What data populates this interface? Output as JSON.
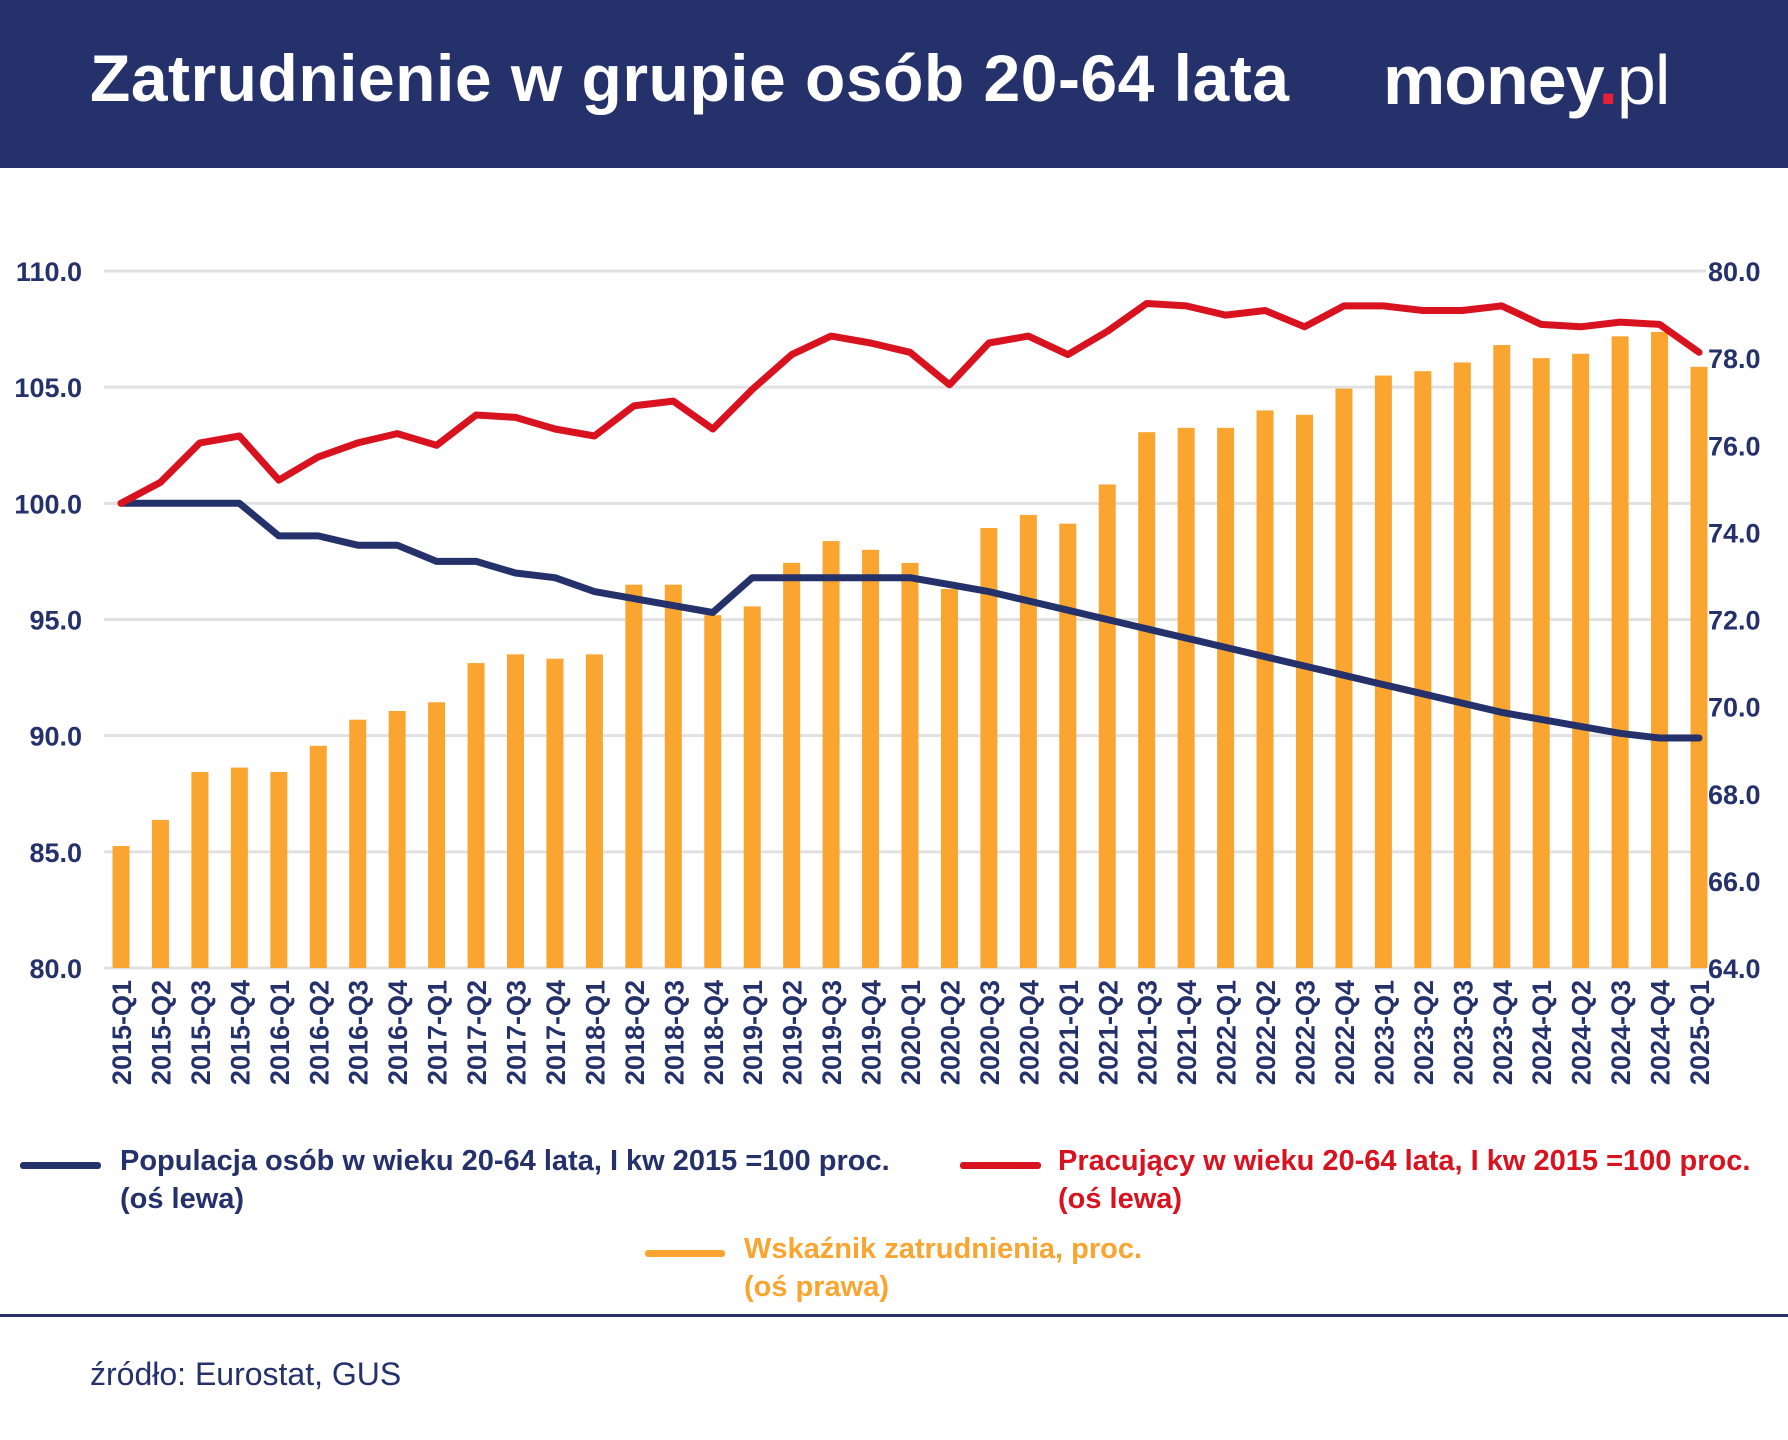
{
  "header": {
    "title": "Zatrudnienie w grupie osób 20-64 lata",
    "logo_main": "money",
    "logo_dot": ".",
    "logo_tld": "pl"
  },
  "colors": {
    "header_bg": "#25316b",
    "population_line": "#25316b",
    "employed_line": "#d9121f",
    "bars": "#f9a530",
    "grid": "#e1e1e1"
  },
  "chart_data": {
    "type": "bar+line",
    "categories": [
      "2015-Q1",
      "2015-Q2",
      "2015-Q3",
      "2015-Q4",
      "2016-Q1",
      "2016-Q2",
      "2016-Q3",
      "2016-Q4",
      "2017-Q1",
      "2017-Q2",
      "2017-Q3",
      "2017-Q4",
      "2018-Q1",
      "2018-Q2",
      "2018-Q3",
      "2018-Q4",
      "2019-Q1",
      "2019-Q2",
      "2019-Q3",
      "2019-Q4",
      "2020-Q1",
      "2020-Q2",
      "2020-Q3",
      "2020-Q4",
      "2021-Q1",
      "2021-Q2",
      "2021-Q3",
      "2021-Q4",
      "2022-Q1",
      "2022-Q2",
      "2022-Q3",
      "2022-Q4",
      "2023-Q1",
      "2023-Q2",
      "2023-Q3",
      "2023-Q4",
      "2024-Q1",
      "2024-Q2",
      "2024-Q3",
      "2024-Q4",
      "2025-Q1"
    ],
    "left_axis": {
      "min": 80,
      "max": 110,
      "ticks": [
        "80.0",
        "85.0",
        "90.0",
        "95.0",
        "100.0",
        "105.0",
        "110.0"
      ]
    },
    "right_axis": {
      "min": 64,
      "max": 80,
      "ticks": [
        "64.0",
        "66.0",
        "68.0",
        "70.0",
        "72.0",
        "74.0",
        "76.0",
        "78.0",
        "80.0"
      ]
    },
    "series": [
      {
        "name": "Populacja osób w wieku 20-64 lata, I kw 2015 =100 proc.",
        "axis_note": "(oś lewa)",
        "type": "line",
        "axis": "left",
        "values": [
          100.0,
          100.0,
          100.0,
          100.0,
          98.6,
          98.6,
          98.2,
          98.2,
          97.5,
          97.5,
          97.0,
          96.8,
          96.2,
          95.9,
          95.6,
          95.3,
          96.8,
          96.8,
          96.8,
          96.8,
          96.8,
          96.5,
          96.2,
          95.8,
          95.4,
          95.0,
          94.6,
          94.2,
          93.8,
          93.4,
          93.0,
          92.6,
          92.2,
          91.8,
          91.4,
          91.0,
          90.7,
          90.4,
          90.1,
          89.9,
          89.9
        ]
      },
      {
        "name": "Pracujący w wieku 20-64 lata, I kw 2015 =100 proc.",
        "axis_note": "(oś lewa)",
        "type": "line",
        "axis": "left",
        "values": [
          100.0,
          100.9,
          102.6,
          102.9,
          101.0,
          102.0,
          102.6,
          103.0,
          102.5,
          103.8,
          103.7,
          103.2,
          102.9,
          104.2,
          104.4,
          103.2,
          104.9,
          106.4,
          107.2,
          106.9,
          106.5,
          105.1,
          106.9,
          107.2,
          106.4,
          107.4,
          108.6,
          108.5,
          108.1,
          108.3,
          107.6,
          108.5,
          108.5,
          108.3,
          108.3,
          108.5,
          107.7,
          107.6,
          107.8,
          107.7,
          106.5
        ]
      },
      {
        "name": "Wskaźnik zatrudnienia, proc.",
        "axis_note": "(oś prawa)",
        "type": "bar",
        "axis": "right",
        "values": [
          66.8,
          67.4,
          68.5,
          68.6,
          68.5,
          69.1,
          69.7,
          69.9,
          70.1,
          71.0,
          71.2,
          71.1,
          71.2,
          72.8,
          72.8,
          72.1,
          72.3,
          73.3,
          73.8,
          73.6,
          73.3,
          72.7,
          74.1,
          74.4,
          74.2,
          75.1,
          76.3,
          76.4,
          76.4,
          76.8,
          76.7,
          77.3,
          77.6,
          77.7,
          77.9,
          78.3,
          78.0,
          78.1,
          78.5,
          78.6,
          77.8
        ]
      }
    ]
  },
  "source": "źródło: Eurostat, GUS"
}
